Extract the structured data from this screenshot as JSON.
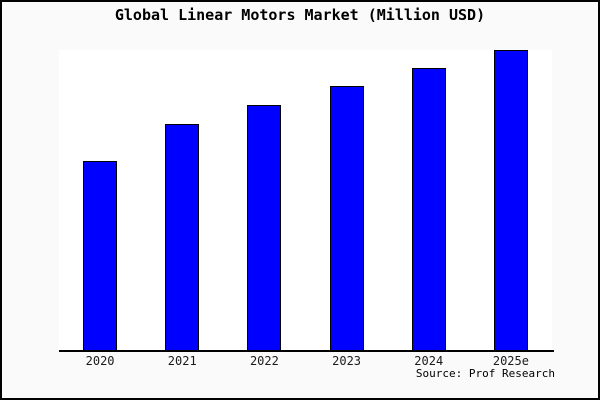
{
  "chart_data": {
    "type": "bar",
    "title": "Global Linear Motors Market (Million USD)",
    "categories": [
      "2020",
      "2021",
      "2022",
      "2023",
      "2024",
      "2025e"
    ],
    "values": [
      63,
      75.3,
      81.7,
      88,
      94,
      100
    ],
    "values_note": "relative index estimated from bar heights; no y-axis tick labels shown; 2025e = 100",
    "xlabel": "",
    "ylabel": "",
    "ylim": [
      0,
      100
    ],
    "y_axis_visible": false,
    "gridlines": false,
    "legend": "none",
    "colors": {
      "bar_fill": "#0000ff",
      "bar_border": "#000000",
      "page_background": "#fafafa",
      "plot_background": "#ffffff",
      "axis": "#000000",
      "text": "#000000"
    }
  },
  "source": {
    "text": "Source: Prof Research"
  }
}
